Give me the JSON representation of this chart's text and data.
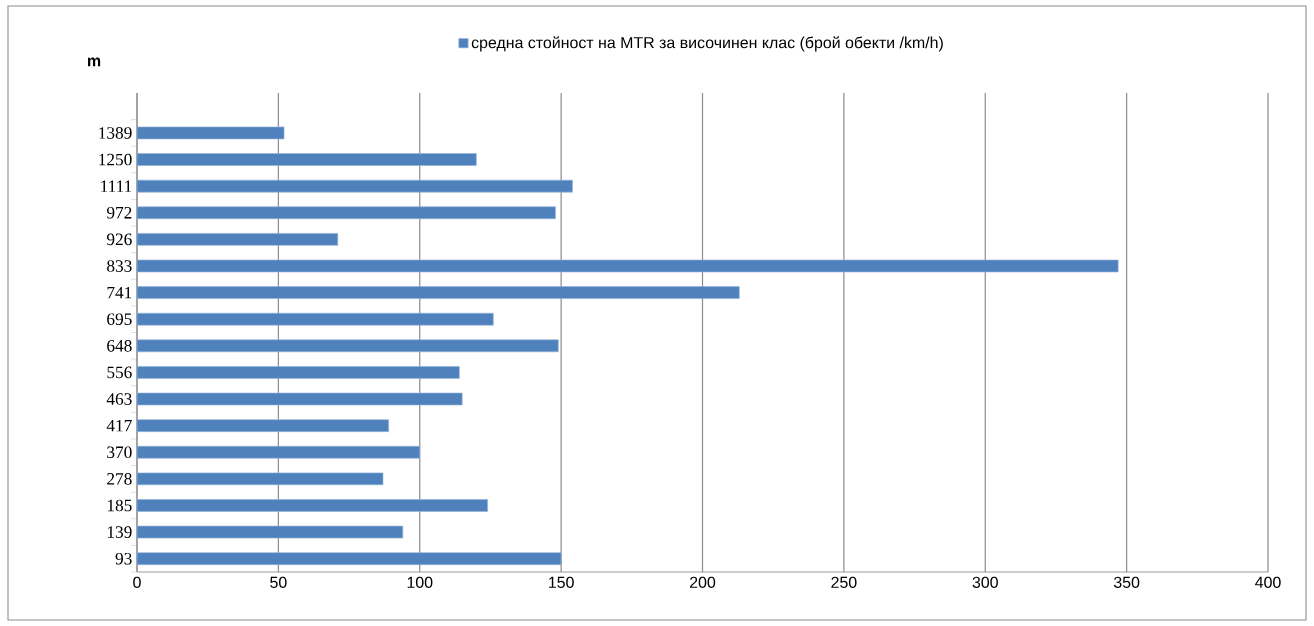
{
  "chart_data": {
    "type": "bar",
    "orientation": "horizontal",
    "ylabel": "m",
    "categories": [
      "1389",
      "1250",
      "1111",
      "972",
      "926",
      "833",
      "741",
      "695",
      "648",
      "556",
      "463",
      "417",
      "370",
      "278",
      "185",
      "139",
      "93"
    ],
    "series": [
      {
        "name": "средна стойност на MTR за височинен клас (брой обекти /km/h)",
        "color": "#4f81bd",
        "values": [
          52,
          120,
          154,
          148,
          71,
          347,
          213,
          126,
          149,
          114,
          115,
          89,
          100,
          87,
          124,
          94,
          150
        ]
      }
    ],
    "xlim": [
      0,
      400
    ],
    "xticks": [
      0,
      50,
      100,
      150,
      200,
      250,
      300,
      350,
      400
    ],
    "grid": "x",
    "legend": "top"
  }
}
